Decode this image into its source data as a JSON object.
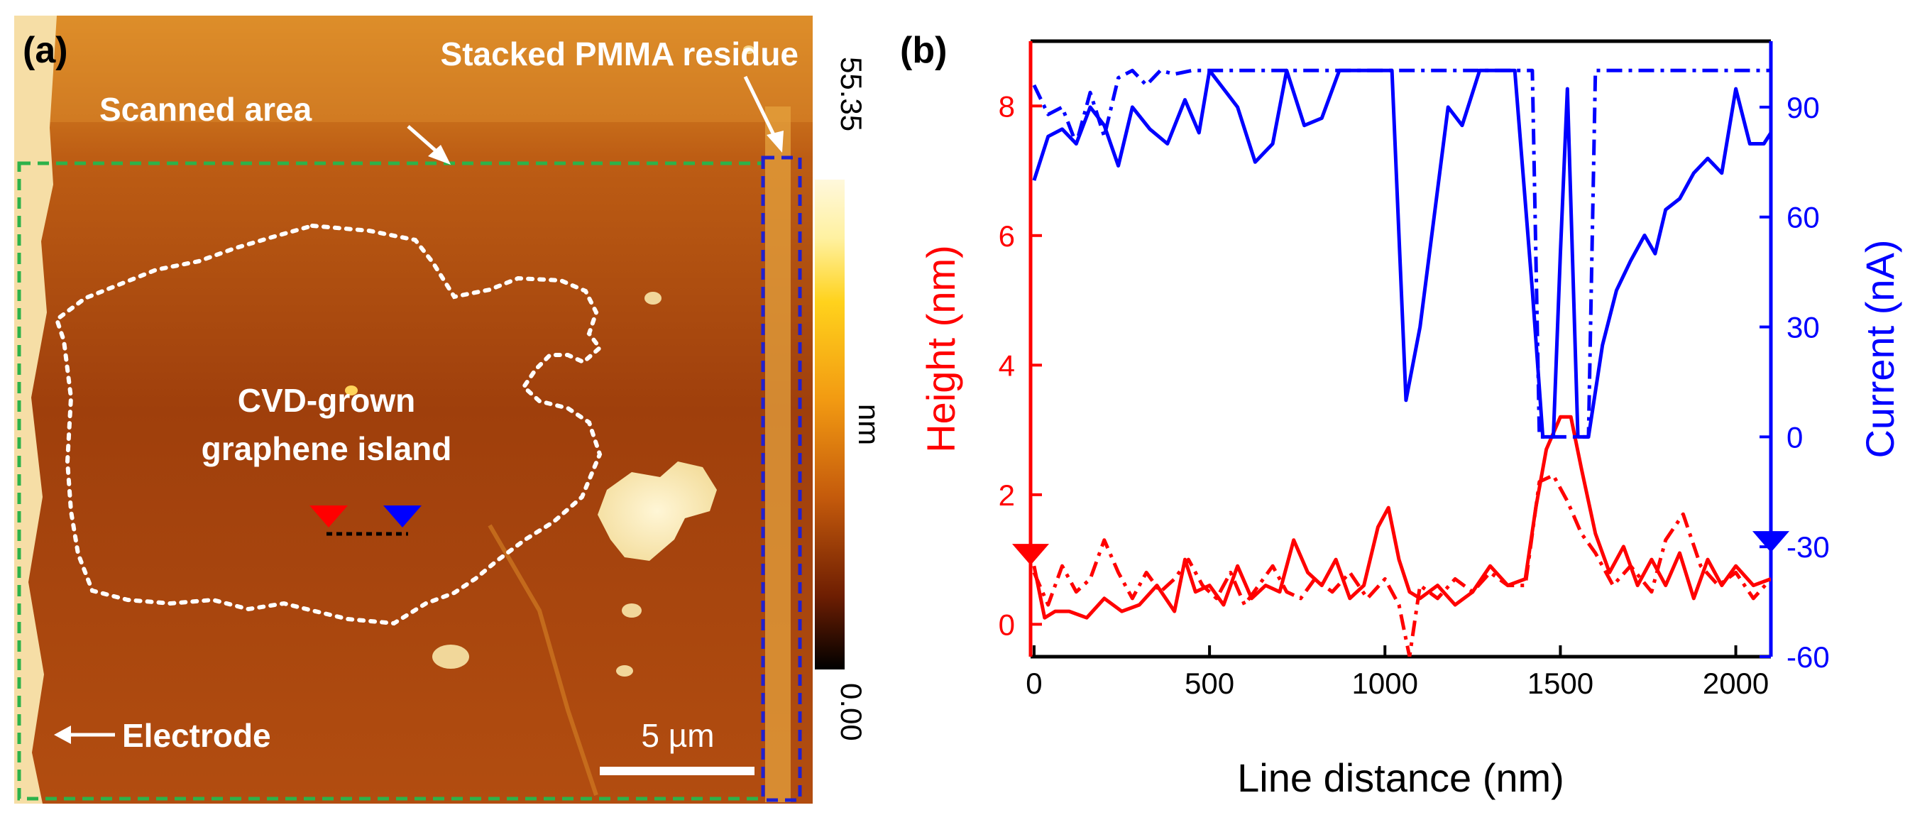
{
  "panel_a": {
    "label": "(a)",
    "annotations": {
      "stacked_pmma": "Stacked PMMA residue",
      "scanned_area": "Scanned area",
      "island_line1": "CVD-grown",
      "island_line2": "graphene island",
      "electrode": "Electrode",
      "scale_bar": "5 µm"
    },
    "colorbar": {
      "max": "55.35",
      "min": "0.00",
      "unit": "nm"
    },
    "colors": {
      "scan_box": "#2db24a",
      "pmma_box": "#2020d0",
      "marker_left": "#ff0000",
      "marker_right": "#0000ff"
    }
  },
  "panel_b": {
    "label": "(b)"
  },
  "chart_data": {
    "type": "line",
    "xlabel": "Line distance (nm)",
    "ylabel_left": "Height (nm)",
    "ylabel_right": "Current (nA)",
    "xlim": [
      -10,
      2100
    ],
    "ylim_left": [
      -0.5,
      9
    ],
    "ylim_right": [
      -60,
      108
    ],
    "x_ticks": [
      0,
      500,
      1000,
      1500,
      2000
    ],
    "y_left_ticks": [
      0,
      2,
      4,
      6,
      8
    ],
    "y_right_ticks": [
      -60,
      -30,
      0,
      30,
      60,
      90
    ],
    "colors": {
      "height": "#ff0000",
      "current": "#0000ff"
    },
    "markers": [
      {
        "axis": "left",
        "value": 1.0,
        "color": "#ff0000"
      },
      {
        "axis": "right",
        "value": -30,
        "color": "#0000ff"
      }
    ],
    "series": [
      {
        "name": "Height solid",
        "axis": "left",
        "style": "solid",
        "color": "#ff0000",
        "x": [
          0,
          30,
          60,
          100,
          150,
          200,
          250,
          300,
          350,
          400,
          430,
          460,
          500,
          540,
          580,
          620,
          660,
          700,
          740,
          780,
          820,
          860,
          900,
          940,
          980,
          1010,
          1040,
          1070,
          1100,
          1150,
          1200,
          1250,
          1300,
          1350,
          1400,
          1430,
          1460,
          1500,
          1530,
          1560,
          1600,
          1640,
          1680,
          1720,
          1760,
          1800,
          1840,
          1880,
          1920,
          1960,
          2000,
          2050,
          2100
        ],
        "y": [
          0.9,
          0.1,
          0.2,
          0.2,
          0.1,
          0.4,
          0.2,
          0.3,
          0.6,
          0.2,
          1.0,
          0.5,
          0.6,
          0.3,
          0.9,
          0.4,
          0.6,
          0.5,
          1.3,
          0.8,
          0.6,
          1.0,
          0.4,
          0.6,
          1.5,
          1.8,
          1.0,
          0.5,
          0.4,
          0.6,
          0.3,
          0.5,
          0.9,
          0.6,
          0.7,
          1.8,
          2.7,
          3.2,
          3.2,
          2.4,
          1.4,
          0.8,
          1.2,
          0.6,
          1.0,
          0.6,
          1.1,
          0.4,
          1.0,
          0.6,
          0.9,
          0.6,
          0.7
        ]
      },
      {
        "name": "Height dash-dot",
        "axis": "left",
        "style": "dashdot",
        "color": "#ff0000",
        "x": [
          0,
          40,
          80,
          120,
          160,
          200,
          240,
          280,
          320,
          360,
          400,
          440,
          480,
          520,
          560,
          600,
          640,
          680,
          720,
          760,
          800,
          850,
          900,
          950,
          1000,
          1040,
          1070,
          1100,
          1150,
          1200,
          1250,
          1300,
          1350,
          1400,
          1440,
          1480,
          1520,
          1560,
          1600,
          1650,
          1700,
          1760,
          1800,
          1850,
          1900,
          1950,
          2000,
          2050,
          2100
        ],
        "y": [
          0.8,
          0.3,
          0.9,
          0.5,
          0.7,
          1.3,
          0.8,
          0.4,
          0.8,
          0.5,
          0.7,
          1.0,
          0.6,
          0.4,
          0.8,
          0.3,
          0.6,
          0.9,
          0.5,
          0.4,
          0.7,
          0.5,
          0.8,
          0.4,
          0.7,
          0.3,
          -0.5,
          0.6,
          0.4,
          0.7,
          0.5,
          0.8,
          0.6,
          0.6,
          2.2,
          2.3,
          1.9,
          1.4,
          1.1,
          0.6,
          0.9,
          0.5,
          1.3,
          1.7,
          0.9,
          0.6,
          0.8,
          0.4,
          0.7
        ]
      },
      {
        "name": "Current solid",
        "axis": "right",
        "style": "solid",
        "color": "#0000ff",
        "x": [
          0,
          40,
          80,
          120,
          160,
          200,
          240,
          280,
          330,
          380,
          430,
          470,
          500,
          540,
          580,
          630,
          680,
          720,
          770,
          820,
          870,
          920,
          980,
          1020,
          1060,
          1100,
          1140,
          1180,
          1220,
          1270,
          1320,
          1370,
          1420,
          1450,
          1480,
          1500,
          1520,
          1550,
          1580,
          1620,
          1660,
          1700,
          1740,
          1770,
          1800,
          1840,
          1880,
          1920,
          1960,
          2000,
          2040,
          2080,
          2100
        ],
        "y": [
          70,
          82,
          84,
          80,
          90,
          85,
          74,
          90,
          84,
          80,
          92,
          83,
          100,
          95,
          90,
          75,
          80,
          100,
          85,
          87,
          100,
          100,
          100,
          100,
          10,
          30,
          60,
          90,
          85,
          100,
          100,
          100,
          40,
          0,
          0,
          50,
          95,
          0,
          0,
          25,
          40,
          48,
          55,
          50,
          62,
          65,
          72,
          76,
          72,
          95,
          80,
          80,
          83
        ]
      },
      {
        "name": "Current dash-dot",
        "axis": "right",
        "style": "dashdot",
        "color": "#0000ff",
        "x": [
          0,
          40,
          80,
          120,
          160,
          200,
          240,
          280,
          320,
          360,
          400,
          450,
          500,
          600,
          700,
          800,
          900,
          1000,
          1100,
          1200,
          1300,
          1400,
          1420,
          1440,
          1460,
          1480,
          1500,
          1520,
          1540,
          1560,
          1580,
          1600,
          1700,
          1800,
          1900,
          2000,
          2100
        ],
        "y": [
          96,
          88,
          90,
          80,
          94,
          82,
          98,
          100,
          96,
          100,
          99,
          100,
          100,
          100,
          100,
          100,
          100,
          100,
          100,
          100,
          100,
          100,
          100,
          0,
          0,
          0,
          0,
          0,
          0,
          0,
          0,
          100,
          100,
          100,
          100,
          100,
          100
        ]
      }
    ]
  }
}
